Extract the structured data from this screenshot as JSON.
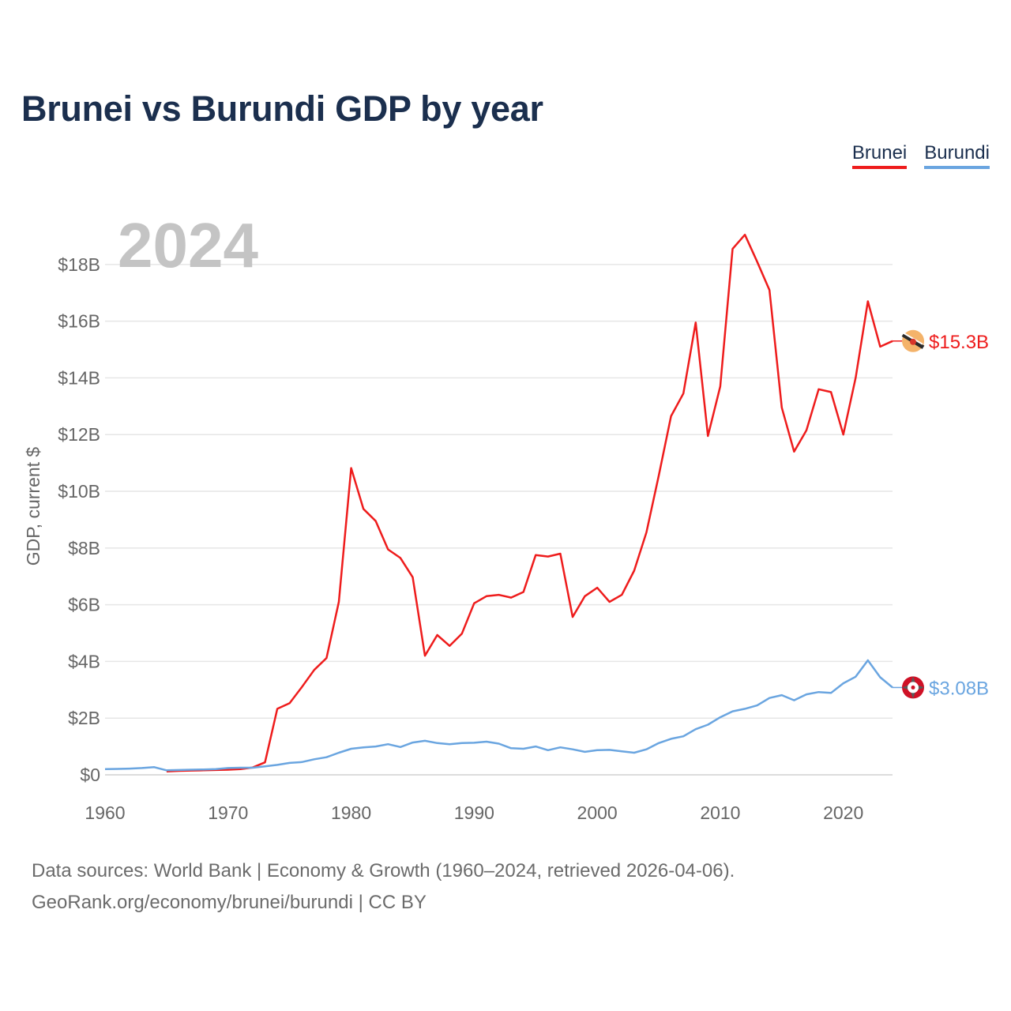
{
  "title": "Brunei vs Burundi GDP by year",
  "legend": [
    {
      "label": "Brunei",
      "color": "#ee1c1c"
    },
    {
      "label": "Burundi",
      "color": "#6aa5e0"
    }
  ],
  "year_watermark": "2024",
  "footer": {
    "line1": "Data sources: World Bank | Economy & Growth (1960–2024, retrieved 2026-04-06).",
    "line2": "GeoRank.org/economy/brunei/burundi | CC BY"
  },
  "chart_data": {
    "type": "line",
    "title": "Brunei vs Burundi GDP by year",
    "xlabel": "",
    "ylabel": "GDP, current $",
    "xlim": [
      1960,
      2024
    ],
    "ylim": [
      0,
      19.5
    ],
    "x_ticks": [
      1960,
      1970,
      1980,
      1990,
      2000,
      2010,
      2020
    ],
    "x_tick_labels": [
      "1960",
      "1970",
      "1980",
      "1990",
      "2000",
      "2010",
      "2020"
    ],
    "y_ticks": [
      0,
      2,
      4,
      6,
      8,
      10,
      12,
      14,
      16,
      18
    ],
    "y_tick_labels": [
      "$0",
      "$2B",
      "$4B",
      "$6B",
      "$8B",
      "$10B",
      "$12B",
      "$14B",
      "$16B",
      "$18B"
    ],
    "unit": "billion USD",
    "grid": true,
    "legend_position": "top-right",
    "series": [
      {
        "name": "Brunei",
        "color": "#ee1c1c",
        "end_label": "$15.3B",
        "x": [
          1965,
          1966,
          1967,
          1968,
          1969,
          1970,
          1971,
          1972,
          1973,
          1974,
          1975,
          1976,
          1977,
          1978,
          1979,
          1980,
          1981,
          1982,
          1983,
          1984,
          1985,
          1986,
          1987,
          1988,
          1989,
          1990,
          1991,
          1992,
          1993,
          1994,
          1995,
          1996,
          1997,
          1998,
          1999,
          2000,
          2001,
          2002,
          2003,
          2004,
          2005,
          2006,
          2007,
          2008,
          2009,
          2010,
          2011,
          2012,
          2013,
          2014,
          2015,
          2016,
          2017,
          2018,
          2019,
          2020,
          2021,
          2022,
          2023,
          2024
        ],
        "values": [
          0.12,
          0.14,
          0.15,
          0.16,
          0.17,
          0.18,
          0.2,
          0.26,
          0.44,
          2.33,
          2.53,
          3.1,
          3.7,
          4.12,
          6.1,
          10.82,
          9.38,
          8.95,
          7.95,
          7.65,
          6.97,
          4.2,
          4.93,
          4.55,
          4.98,
          6.05,
          6.3,
          6.35,
          6.25,
          6.45,
          7.75,
          7.7,
          7.8,
          5.57,
          6.3,
          6.6,
          6.1,
          6.35,
          7.2,
          8.55,
          10.55,
          12.65,
          13.45,
          15.95,
          11.95,
          13.7,
          18.55,
          19.05,
          18.1,
          17.1,
          12.95,
          11.4,
          12.15,
          13.6,
          13.5,
          12.0,
          14.0,
          16.7,
          15.1,
          15.3
        ]
      },
      {
        "name": "Burundi",
        "color": "#6aa5e0",
        "end_label": "$3.08B",
        "x": [
          1960,
          1961,
          1962,
          1963,
          1964,
          1965,
          1966,
          1967,
          1968,
          1969,
          1970,
          1971,
          1972,
          1973,
          1974,
          1975,
          1976,
          1977,
          1978,
          1979,
          1980,
          1981,
          1982,
          1983,
          1984,
          1985,
          1986,
          1987,
          1988,
          1989,
          1990,
          1991,
          1992,
          1993,
          1994,
          1995,
          1996,
          1997,
          1998,
          1999,
          2000,
          2001,
          2002,
          2003,
          2004,
          2005,
          2006,
          2007,
          2008,
          2009,
          2010,
          2011,
          2012,
          2013,
          2014,
          2015,
          2016,
          2017,
          2018,
          2019,
          2020,
          2021,
          2022,
          2023,
          2024
        ],
        "values": [
          0.2,
          0.21,
          0.22,
          0.24,
          0.27,
          0.16,
          0.17,
          0.18,
          0.19,
          0.2,
          0.24,
          0.25,
          0.25,
          0.3,
          0.35,
          0.42,
          0.45,
          0.55,
          0.62,
          0.78,
          0.92,
          0.97,
          1.0,
          1.08,
          0.98,
          1.14,
          1.2,
          1.12,
          1.08,
          1.12,
          1.13,
          1.17,
          1.1,
          0.94,
          0.92,
          1.0,
          0.87,
          0.97,
          0.9,
          0.81,
          0.87,
          0.88,
          0.83,
          0.78,
          0.9,
          1.12,
          1.27,
          1.36,
          1.61,
          1.77,
          2.03,
          2.24,
          2.33,
          2.45,
          2.71,
          2.81,
          2.63,
          2.84,
          2.92,
          2.89,
          3.23,
          3.46,
          4.04,
          3.44,
          3.08
        ]
      }
    ]
  }
}
